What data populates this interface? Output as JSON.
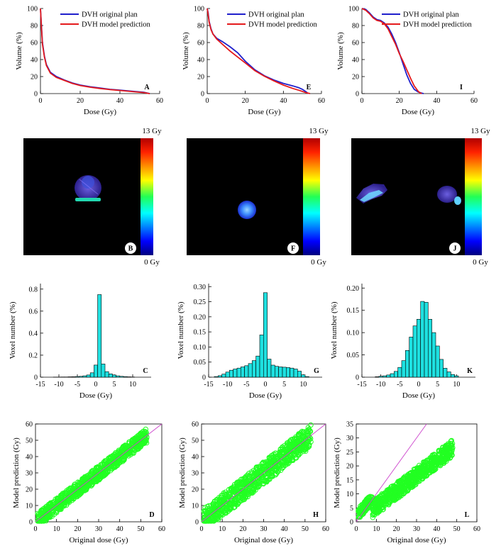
{
  "figure": {
    "dvh_panels": [
      {
        "label": "A",
        "xlabel": "Dose (Gy)",
        "ylabel": "Volume (%)",
        "xlim": [
          0,
          60
        ],
        "ylim": [
          0,
          100
        ],
        "xticks": [
          0,
          20,
          40,
          60
        ],
        "yticks": [
          0,
          20,
          40,
          60,
          80,
          100
        ],
        "legend": [
          "DVH original plan",
          "DVH model prediction"
        ],
        "orig": [
          [
            0,
            100
          ],
          [
            0.5,
            80
          ],
          [
            1,
            60
          ],
          [
            2,
            44
          ],
          [
            3,
            34
          ],
          [
            5,
            25
          ],
          [
            8,
            20
          ],
          [
            12,
            16
          ],
          [
            16,
            12.5
          ],
          [
            20,
            10
          ],
          [
            25,
            8
          ],
          [
            30,
            6.5
          ],
          [
            35,
            5
          ],
          [
            40,
            4
          ],
          [
            45,
            3
          ],
          [
            50,
            2
          ],
          [
            52,
            1.5
          ],
          [
            53,
            1
          ],
          [
            54,
            0.5
          ],
          [
            55,
            0
          ]
        ],
        "pred": [
          [
            0,
            100
          ],
          [
            0.5,
            78
          ],
          [
            1,
            58
          ],
          [
            2,
            43
          ],
          [
            3,
            33
          ],
          [
            5,
            24
          ],
          [
            8,
            19
          ],
          [
            12,
            15.5
          ],
          [
            16,
            12
          ],
          [
            20,
            9.5
          ],
          [
            25,
            7.5
          ],
          [
            30,
            6
          ],
          [
            35,
            4.7
          ],
          [
            40,
            3.7
          ],
          [
            45,
            2.6
          ],
          [
            50,
            1.6
          ],
          [
            52,
            1.2
          ],
          [
            53,
            0.8
          ],
          [
            54,
            0.3
          ],
          [
            55,
            0
          ]
        ]
      },
      {
        "label": "E",
        "xlabel": "Dose (Gy)",
        "ylabel": "Volume (%)",
        "xlim": [
          0,
          60
        ],
        "ylim": [
          0,
          100
        ],
        "xticks": [
          0,
          20,
          40,
          60
        ],
        "yticks": [
          0,
          20,
          40,
          60,
          80,
          100
        ],
        "legend": [
          "DVH original plan",
          "DVH model prediction"
        ],
        "orig": [
          [
            0,
            100
          ],
          [
            0.5,
            95
          ],
          [
            1,
            85
          ],
          [
            2,
            76
          ],
          [
            3,
            70
          ],
          [
            5,
            65
          ],
          [
            8,
            61
          ],
          [
            12,
            55
          ],
          [
            16,
            48
          ],
          [
            20,
            38
          ],
          [
            25,
            28
          ],
          [
            30,
            21
          ],
          [
            35,
            16
          ],
          [
            40,
            12
          ],
          [
            45,
            9
          ],
          [
            48,
            7
          ],
          [
            50,
            5
          ],
          [
            52,
            2
          ],
          [
            53,
            0
          ]
        ],
        "pred": [
          [
            0,
            100
          ],
          [
            0.5,
            93
          ],
          [
            1,
            84
          ],
          [
            2,
            75
          ],
          [
            3,
            70
          ],
          [
            5,
            64
          ],
          [
            8,
            58
          ],
          [
            12,
            50
          ],
          [
            16,
            43
          ],
          [
            20,
            36
          ],
          [
            25,
            27
          ],
          [
            30,
            20.5
          ],
          [
            35,
            15
          ],
          [
            40,
            10
          ],
          [
            45,
            6
          ],
          [
            48,
            4
          ],
          [
            50,
            2.5
          ],
          [
            52,
            1
          ],
          [
            54,
            0
          ]
        ]
      },
      {
        "label": "I",
        "xlabel": "Dose (Gy)",
        "ylabel": "Volume (%)",
        "xlim": [
          0,
          60
        ],
        "ylim": [
          0,
          100
        ],
        "xticks": [
          0,
          20,
          40,
          60
        ],
        "yticks": [
          0,
          20,
          40,
          60,
          80,
          100
        ],
        "legend": [
          "DVH original plan",
          "DVH model prediction"
        ],
        "orig": [
          [
            0,
            100
          ],
          [
            2,
            99
          ],
          [
            4,
            95
          ],
          [
            6,
            90
          ],
          [
            8,
            87
          ],
          [
            10,
            86
          ],
          [
            12,
            83
          ],
          [
            14,
            78
          ],
          [
            16,
            70
          ],
          [
            18,
            60
          ],
          [
            20,
            48
          ],
          [
            22,
            35
          ],
          [
            24,
            22
          ],
          [
            26,
            12
          ],
          [
            28,
            5
          ],
          [
            30,
            2
          ],
          [
            32,
            0.5
          ],
          [
            33,
            0
          ]
        ],
        "pred": [
          [
            0,
            100
          ],
          [
            2,
            98
          ],
          [
            4,
            94
          ],
          [
            6,
            89
          ],
          [
            8,
            86
          ],
          [
            10,
            85
          ],
          [
            12,
            82
          ],
          [
            14,
            76
          ],
          [
            16,
            67
          ],
          [
            18,
            58
          ],
          [
            20,
            47
          ],
          [
            22,
            38
          ],
          [
            24,
            28
          ],
          [
            26,
            18
          ],
          [
            28,
            9
          ],
          [
            30,
            3
          ],
          [
            31,
            1
          ],
          [
            32,
            0
          ]
        ]
      }
    ],
    "map_panels": [
      {
        "label": "B",
        "cmax": "13 Gy",
        "cmin": "0 Gy"
      },
      {
        "label": "F",
        "cmax": "13 Gy",
        "cmin": "0 Gy"
      },
      {
        "label": "J",
        "cmax": "13 Gy",
        "cmin": "0 Gy"
      }
    ],
    "hist_panels": [
      {
        "label": "C",
        "xlabel": "Dose (Gy)",
        "ylabel": "Voxel number (%)",
        "xlim": [
          -15,
          15
        ],
        "ylim": [
          0,
          0.85
        ],
        "xticks": [
          -15,
          -10,
          -5,
          0,
          5,
          10
        ],
        "yticks": [
          0,
          0.2,
          0.4,
          0.6,
          0.8
        ],
        "ytick_labels": [
          "0",
          "0.2",
          "0.4",
          "0.6",
          "0.8"
        ],
        "bins": [
          -11,
          -10,
          -9,
          -8,
          -7,
          -6,
          -5,
          -4,
          -3,
          -2,
          -1,
          0,
          1,
          2,
          3,
          4,
          5,
          6,
          7,
          8,
          9,
          10
        ],
        "values": [
          0.001,
          0.001,
          0.002,
          0.002,
          0.003,
          0.004,
          0.006,
          0.008,
          0.012,
          0.02,
          0.04,
          0.11,
          0.75,
          0.12,
          0.05,
          0.03,
          0.02,
          0.012,
          0.008,
          0.005,
          0.003,
          0.002
        ]
      },
      {
        "label": "G",
        "xlabel": "Dose (Gy)",
        "ylabel": "Voxel number (%)",
        "xlim": [
          -15,
          15
        ],
        "ylim": [
          0,
          0.31
        ],
        "xticks": [
          -15,
          -10,
          -5,
          0,
          5,
          10
        ],
        "yticks": [
          0,
          0.05,
          0.1,
          0.15,
          0.2,
          0.25,
          0.3
        ],
        "ytick_labels": [
          "0",
          "0.05",
          "0.10",
          "0.15",
          "0.20",
          "0.25",
          "0.30"
        ],
        "bins": [
          -13,
          -12,
          -11,
          -10,
          -9,
          -8,
          -7,
          -6,
          -5,
          -4,
          -3,
          -2,
          -1,
          0,
          1,
          2,
          3,
          4,
          5,
          6,
          7,
          8,
          9,
          10,
          11
        ],
        "values": [
          0.002,
          0.005,
          0.01,
          0.017,
          0.023,
          0.027,
          0.03,
          0.034,
          0.038,
          0.045,
          0.055,
          0.07,
          0.14,
          0.28,
          0.06,
          0.04,
          0.036,
          0.034,
          0.033,
          0.032,
          0.03,
          0.027,
          0.02,
          0.008,
          0.002
        ]
      },
      {
        "label": "K",
        "xlabel": "Dose (Gy)",
        "ylabel": "Voxel number (%)",
        "xlim": [
          -15,
          15
        ],
        "ylim": [
          0,
          0.21
        ],
        "xticks": [
          -15,
          -10,
          -5,
          0,
          5,
          10
        ],
        "yticks": [
          0,
          0.05,
          0.1,
          0.15,
          0.2
        ],
        "ytick_labels": [
          "0",
          "0.05",
          "0.10",
          "0.15",
          "0.20"
        ],
        "bins": [
          -11,
          -10,
          -9,
          -8,
          -7,
          -6,
          -5,
          -4,
          -3,
          -2,
          -1,
          0,
          1,
          2,
          3,
          4,
          5,
          6,
          7,
          8,
          9,
          10
        ],
        "values": [
          0.001,
          0.002,
          0.003,
          0.005,
          0.008,
          0.013,
          0.022,
          0.037,
          0.06,
          0.09,
          0.115,
          0.13,
          0.17,
          0.168,
          0.13,
          0.1,
          0.07,
          0.04,
          0.02,
          0.012,
          0.006,
          0.003
        ]
      }
    ],
    "scatter_panels": [
      {
        "label": "D",
        "xlabel": "Original dose (Gy)",
        "ylabel": "Model prediction (Gy)",
        "xlim": [
          0,
          60
        ],
        "ylim": [
          0,
          60
        ],
        "xticks": [
          0,
          10,
          20,
          30,
          40,
          50,
          60
        ],
        "yticks": [
          0,
          10,
          20,
          30,
          40,
          50,
          60
        ],
        "xmax_data": 53,
        "spread": 4.5
      },
      {
        "label": "H",
        "xlabel": "Original dose (Gy)",
        "ylabel": "Model prediction (Gy)",
        "xlim": [
          0,
          60
        ],
        "ylim": [
          0,
          60
        ],
        "xticks": [
          0,
          10,
          20,
          30,
          40,
          50,
          60
        ],
        "yticks": [
          0,
          10,
          20,
          30,
          40,
          50,
          60
        ],
        "xmax_data": 53,
        "spread": 7
      },
      {
        "label": "L",
        "xlabel": "Original dose (Gy)",
        "ylabel": "Model prediction (Gy)",
        "xlim": [
          0,
          60
        ],
        "ylim": [
          0,
          35
        ],
        "xticks": [
          0,
          10,
          20,
          30,
          40,
          50,
          60
        ],
        "yticks": [
          0,
          5,
          10,
          15,
          20,
          25,
          30,
          35
        ],
        "xmax_data": 48,
        "spread": 5
      }
    ],
    "colors": {
      "orig": "#1f1fcc",
      "pred": "#e41a1c",
      "bar": "#1ee0e0",
      "scatter": "#22ff22",
      "diag": "#cc44cc"
    }
  }
}
